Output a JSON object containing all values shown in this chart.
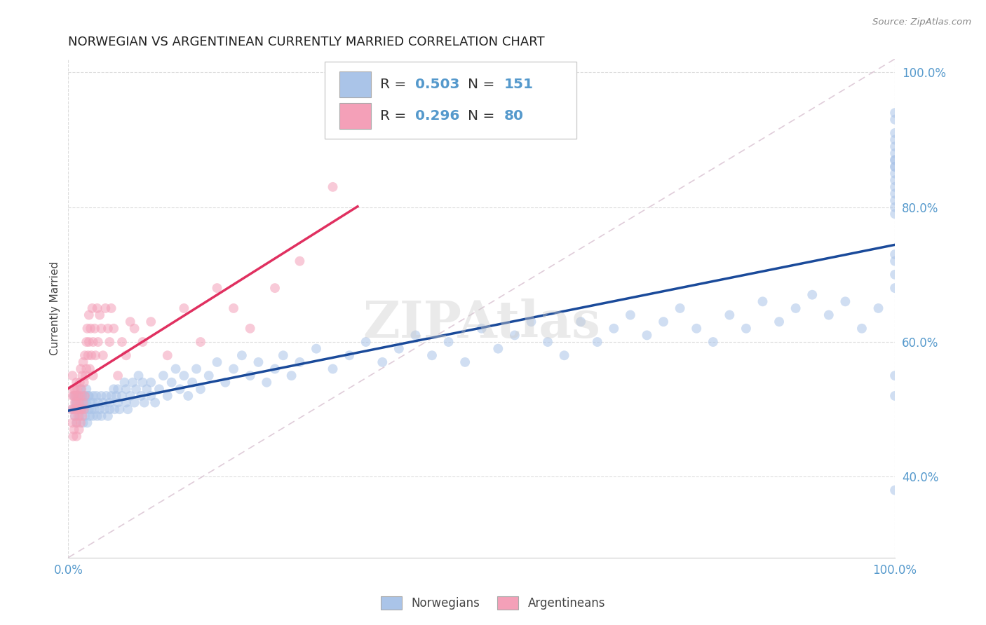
{
  "title": "NORWEGIAN VS ARGENTINEAN CURRENTLY MARRIED CORRELATION CHART",
  "source": "Source: ZipAtlas.com",
  "ylabel": "Currently Married",
  "watermark": "ZIPAtlas",
  "norwegian_R": 0.503,
  "norwegian_N": 151,
  "argentinean_R": 0.296,
  "argentinean_N": 80,
  "norwegian_color": "#aac4e8",
  "argentinean_color": "#f4a0b8",
  "norwegian_line_color": "#1a4a9a",
  "argentinean_line_color": "#e03060",
  "diagonal_color": "#d8c0d0",
  "title_fontsize": 13,
  "axis_label_fontsize": 11,
  "tick_label_color": "#5599cc",
  "source_fontsize": 10,
  "marker_size": 100,
  "marker_alpha": 0.55,
  "norwegians_x": [
    0.005,
    0.007,
    0.008,
    0.009,
    0.01,
    0.01,
    0.01,
    0.01,
    0.012,
    0.013,
    0.014,
    0.015,
    0.015,
    0.016,
    0.017,
    0.018,
    0.019,
    0.02,
    0.02,
    0.02,
    0.022,
    0.022,
    0.023,
    0.024,
    0.025,
    0.025,
    0.026,
    0.027,
    0.028,
    0.03,
    0.03,
    0.03,
    0.032,
    0.034,
    0.035,
    0.036,
    0.038,
    0.04,
    0.04,
    0.042,
    0.044,
    0.046,
    0.048,
    0.05,
    0.05,
    0.052,
    0.055,
    0.056,
    0.058,
    0.06,
    0.06,
    0.062,
    0.065,
    0.068,
    0.07,
    0.07,
    0.072,
    0.075,
    0.078,
    0.08,
    0.082,
    0.085,
    0.088,
    0.09,
    0.092,
    0.095,
    0.1,
    0.1,
    0.105,
    0.11,
    0.115,
    0.12,
    0.125,
    0.13,
    0.135,
    0.14,
    0.145,
    0.15,
    0.155,
    0.16,
    0.17,
    0.18,
    0.19,
    0.2,
    0.21,
    0.22,
    0.23,
    0.24,
    0.25,
    0.26,
    0.27,
    0.28,
    0.3,
    0.32,
    0.34,
    0.36,
    0.38,
    0.4,
    0.42,
    0.44,
    0.46,
    0.48,
    0.5,
    0.52,
    0.54,
    0.56,
    0.58,
    0.6,
    0.62,
    0.64,
    0.66,
    0.68,
    0.7,
    0.72,
    0.74,
    0.76,
    0.78,
    0.8,
    0.82,
    0.84,
    0.86,
    0.88,
    0.9,
    0.92,
    0.94,
    0.96,
    0.98,
    1.0,
    1.0,
    1.0,
    1.0,
    1.0,
    1.0,
    1.0,
    1.0,
    1.0,
    1.0,
    1.0,
    1.0,
    1.0,
    1.0,
    1.0,
    1.0,
    1.0,
    1.0,
    1.0,
    1.0,
    1.0,
    1.0,
    1.0,
    1.0
  ],
  "norwegians_y": [
    0.5,
    0.52,
    0.49,
    0.51,
    0.5,
    0.52,
    0.48,
    0.51,
    0.5,
    0.52,
    0.49,
    0.51,
    0.53,
    0.5,
    0.52,
    0.48,
    0.51,
    0.5,
    0.52,
    0.49,
    0.51,
    0.53,
    0.48,
    0.52,
    0.5,
    0.52,
    0.49,
    0.51,
    0.5,
    0.52,
    0.49,
    0.51,
    0.5,
    0.52,
    0.49,
    0.51,
    0.5,
    0.52,
    0.49,
    0.51,
    0.5,
    0.52,
    0.49,
    0.51,
    0.5,
    0.52,
    0.53,
    0.5,
    0.52,
    0.51,
    0.53,
    0.5,
    0.52,
    0.54,
    0.51,
    0.53,
    0.5,
    0.52,
    0.54,
    0.51,
    0.53,
    0.55,
    0.52,
    0.54,
    0.51,
    0.53,
    0.52,
    0.54,
    0.51,
    0.53,
    0.55,
    0.52,
    0.54,
    0.56,
    0.53,
    0.55,
    0.52,
    0.54,
    0.56,
    0.53,
    0.55,
    0.57,
    0.54,
    0.56,
    0.58,
    0.55,
    0.57,
    0.54,
    0.56,
    0.58,
    0.55,
    0.57,
    0.59,
    0.56,
    0.58,
    0.6,
    0.57,
    0.59,
    0.61,
    0.58,
    0.6,
    0.57,
    0.62,
    0.59,
    0.61,
    0.63,
    0.6,
    0.58,
    0.63,
    0.6,
    0.62,
    0.64,
    0.61,
    0.63,
    0.65,
    0.62,
    0.6,
    0.64,
    0.62,
    0.66,
    0.63,
    0.65,
    0.67,
    0.64,
    0.66,
    0.62,
    0.65,
    0.94,
    0.93,
    0.91,
    0.9,
    0.89,
    0.88,
    0.87,
    0.87,
    0.86,
    0.86,
    0.85,
    0.84,
    0.83,
    0.82,
    0.81,
    0.8,
    0.79,
    0.73,
    0.7,
    0.68,
    0.72,
    0.55,
    0.52,
    0.38
  ],
  "argentineans_x": [
    0.004,
    0.005,
    0.005,
    0.005,
    0.006,
    0.006,
    0.007,
    0.007,
    0.007,
    0.008,
    0.008,
    0.008,
    0.009,
    0.009,
    0.01,
    0.01,
    0.01,
    0.01,
    0.011,
    0.011,
    0.012,
    0.012,
    0.013,
    0.013,
    0.014,
    0.014,
    0.015,
    0.015,
    0.015,
    0.016,
    0.016,
    0.017,
    0.017,
    0.018,
    0.018,
    0.019,
    0.019,
    0.02,
    0.02,
    0.021,
    0.022,
    0.022,
    0.023,
    0.024,
    0.025,
    0.025,
    0.026,
    0.027,
    0.028,
    0.029,
    0.03,
    0.03,
    0.032,
    0.033,
    0.035,
    0.036,
    0.038,
    0.04,
    0.042,
    0.045,
    0.048,
    0.05,
    0.052,
    0.055,
    0.06,
    0.065,
    0.07,
    0.075,
    0.08,
    0.09,
    0.1,
    0.12,
    0.14,
    0.16,
    0.18,
    0.2,
    0.22,
    0.25,
    0.28,
    0.32
  ],
  "argentineans_y": [
    0.5,
    0.52,
    0.48,
    0.55,
    0.46,
    0.53,
    0.5,
    0.52,
    0.47,
    0.51,
    0.49,
    0.53,
    0.5,
    0.52,
    0.48,
    0.54,
    0.46,
    0.51,
    0.5,
    0.53,
    0.49,
    0.52,
    0.47,
    0.51,
    0.5,
    0.54,
    0.48,
    0.52,
    0.56,
    0.5,
    0.53,
    0.49,
    0.55,
    0.51,
    0.57,
    0.5,
    0.54,
    0.52,
    0.58,
    0.55,
    0.6,
    0.56,
    0.62,
    0.58,
    0.64,
    0.6,
    0.56,
    0.62,
    0.58,
    0.65,
    0.6,
    0.55,
    0.62,
    0.58,
    0.65,
    0.6,
    0.64,
    0.62,
    0.58,
    0.65,
    0.62,
    0.6,
    0.65,
    0.62,
    0.55,
    0.6,
    0.58,
    0.63,
    0.62,
    0.6,
    0.63,
    0.58,
    0.65,
    0.6,
    0.68,
    0.65,
    0.62,
    0.68,
    0.72,
    0.83
  ],
  "xlim": [
    0.0,
    1.0
  ],
  "ylim": [
    0.28,
    1.02
  ],
  "yticks": [
    0.4,
    0.6,
    0.8,
    1.0
  ],
  "ytick_labels": [
    "40.0%",
    "60.0%",
    "80.0%",
    "100.0%"
  ],
  "xtick_labels": [
    "0.0%",
    "100.0%"
  ],
  "grid_color": "#dddddd",
  "background_color": "#ffffff"
}
